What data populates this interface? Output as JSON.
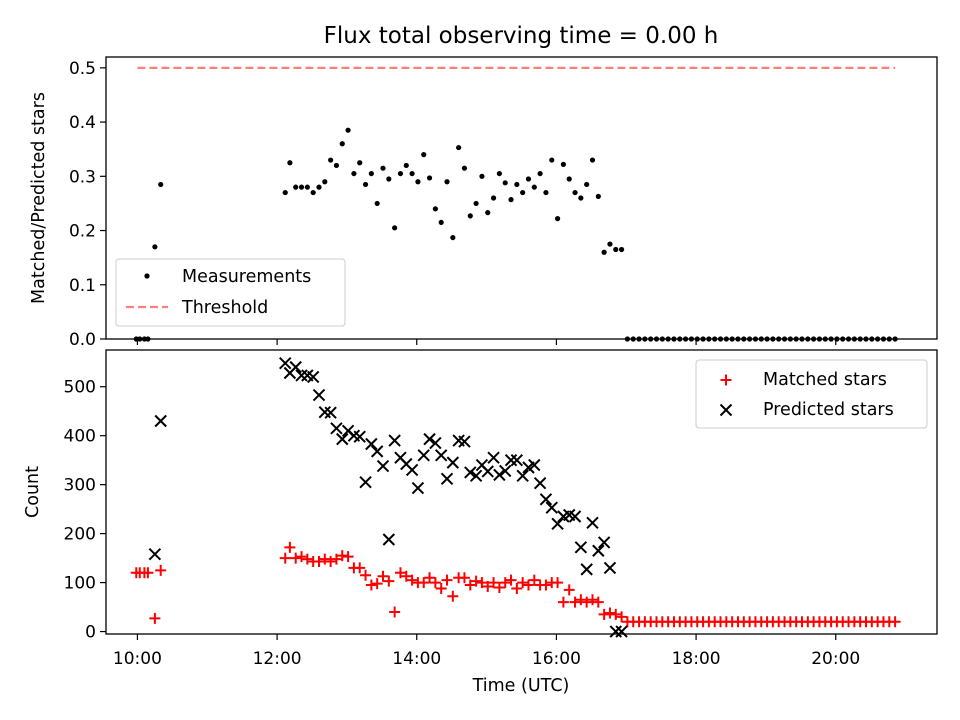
{
  "figure": {
    "title": "Flux total observing time = 0.00 h"
  },
  "chart_data": [
    {
      "type": "scatter",
      "title": "Flux total observing time = 0.00 h",
      "xlabel": "",
      "ylabel": "Matched/Predicted stars",
      "xlim": [
        "09:33",
        "21:27"
      ],
      "ylim": [
        0,
        0.52
      ],
      "yticks": [
        0,
        0.1,
        0.2,
        0.3,
        0.4,
        0.5
      ],
      "ytick_labels": [
        "0.0",
        "0.1",
        "0.2",
        "0.3",
        "0.4",
        "0.5"
      ],
      "legend_position": "lower-left",
      "series": [
        {
          "name": "Measurements",
          "kind": "points",
          "color": "#000000",
          "x": [
            "09:59",
            "10:02",
            "10:06",
            "10:09",
            "10:15",
            "10:20",
            "12:07",
            "12:11",
            "12:16",
            "12:21",
            "12:26",
            "12:31",
            "12:36",
            "12:41",
            "12:46",
            "12:51",
            "12:56",
            "13:01",
            "13:06",
            "13:11",
            "13:16",
            "13:21",
            "13:26",
            "13:31",
            "13:36",
            "13:41",
            "13:46",
            "13:51",
            "13:56",
            "14:01",
            "14:06",
            "14:11",
            "14:16",
            "14:21",
            "14:26",
            "14:31",
            "14:36",
            "14:41",
            "14:46",
            "14:51",
            "14:56",
            "15:01",
            "15:06",
            "15:11",
            "15:16",
            "15:21",
            "15:26",
            "15:31",
            "15:36",
            "15:41",
            "15:46",
            "15:51",
            "15:56",
            "16:01",
            "16:06",
            "16:11",
            "16:16",
            "16:21",
            "16:26",
            "16:31",
            "16:36",
            "16:41",
            "16:46",
            "16:51",
            "16:56",
            "17:01",
            "17:06",
            "17:11",
            "17:16",
            "17:21",
            "17:26",
            "17:31",
            "17:36",
            "17:41",
            "17:46",
            "17:51",
            "17:56",
            "18:01",
            "18:06",
            "18:11",
            "18:16",
            "18:21",
            "18:26",
            "18:31",
            "18:36",
            "18:41",
            "18:46",
            "18:51",
            "18:56",
            "19:01",
            "19:06",
            "19:11",
            "19:16",
            "19:21",
            "19:26",
            "19:31",
            "19:36",
            "19:41",
            "19:46",
            "19:51",
            "19:56",
            "20:01",
            "20:06",
            "20:11",
            "20:16",
            "20:21",
            "20:26",
            "20:31",
            "20:36",
            "20:41",
            "20:46",
            "20:51"
          ],
          "y": [
            0.0,
            0.0,
            0.0,
            0.0,
            0.17,
            0.285,
            0.27,
            0.325,
            0.28,
            0.28,
            0.28,
            0.27,
            0.28,
            0.29,
            0.33,
            0.32,
            0.36,
            0.385,
            0.305,
            0.325,
            0.285,
            0.305,
            0.25,
            0.315,
            0.295,
            0.205,
            0.305,
            0.32,
            0.305,
            0.29,
            0.34,
            0.297,
            0.24,
            0.215,
            0.29,
            0.187,
            0.353,
            0.315,
            0.227,
            0.25,
            0.3,
            0.233,
            0.26,
            0.305,
            0.288,
            0.257,
            0.285,
            0.27,
            0.295,
            0.28,
            0.305,
            0.27,
            0.33,
            0.222,
            0.322,
            0.295,
            0.27,
            0.26,
            0.285,
            0.33,
            0.263,
            0.16,
            0.175,
            0.165,
            0.165,
            0.0,
            0.0,
            0.0,
            0.0,
            0.0,
            0.0,
            0.0,
            0.0,
            0.0,
            0.0,
            0.0,
            0.0,
            0.0,
            0.0,
            0.0,
            0.0,
            0.0,
            0.0,
            0.0,
            0.0,
            0.0,
            0.0,
            0.0,
            0.0,
            0.0,
            0.0,
            0.0,
            0.0,
            0.0,
            0.0,
            0.0,
            0.0,
            0.0,
            0.0,
            0.0,
            0.0,
            0.0,
            0.0,
            0.0,
            0.0,
            0.0,
            0.0,
            0.0,
            0.0,
            0.0,
            0.0,
            0.0
          ]
        },
        {
          "name": "Threshold",
          "kind": "dashed-line",
          "color": "#ff7f7f",
          "x": [
            "10:00",
            "20:51"
          ],
          "y": [
            0.5,
            0.5
          ]
        }
      ]
    },
    {
      "type": "scatter",
      "xlabel": "Time (UTC)",
      "ylabel": "Count",
      "xlim": [
        "09:33",
        "21:27"
      ],
      "ylim": [
        -5,
        575
      ],
      "xtick_labels": [
        "10:00",
        "12:00",
        "14:00",
        "16:00",
        "18:00",
        "20:00"
      ],
      "yticks": [
        0,
        100,
        200,
        300,
        400,
        500
      ],
      "ytick_labels": [
        "0",
        "100",
        "200",
        "300",
        "400",
        "500"
      ],
      "legend_position": "upper-right",
      "series": [
        {
          "name": "Matched stars",
          "kind": "plus",
          "color": "#ff0000",
          "x": [
            "09:59",
            "10:02",
            "10:06",
            "10:09",
            "10:15",
            "10:20",
            "12:07",
            "12:11",
            "12:16",
            "12:21",
            "12:26",
            "12:31",
            "12:36",
            "12:41",
            "12:46",
            "12:51",
            "12:56",
            "13:01",
            "13:06",
            "13:11",
            "13:16",
            "13:21",
            "13:26",
            "13:31",
            "13:36",
            "13:41",
            "13:46",
            "13:51",
            "13:56",
            "14:01",
            "14:06",
            "14:11",
            "14:16",
            "14:21",
            "14:26",
            "14:31",
            "14:36",
            "14:41",
            "14:46",
            "14:51",
            "14:56",
            "15:01",
            "15:06",
            "15:11",
            "15:16",
            "15:21",
            "15:26",
            "15:31",
            "15:36",
            "15:41",
            "15:46",
            "15:51",
            "15:56",
            "16:01",
            "16:06",
            "16:11",
            "16:16",
            "16:21",
            "16:26",
            "16:31",
            "16:36",
            "16:41",
            "16:46",
            "16:51",
            "16:56",
            "17:01",
            "17:06",
            "17:11",
            "17:16",
            "17:21",
            "17:26",
            "17:31",
            "17:36",
            "17:41",
            "17:46",
            "17:51",
            "17:56",
            "18:01",
            "18:06",
            "18:11",
            "18:16",
            "18:21",
            "18:26",
            "18:31",
            "18:36",
            "18:41",
            "18:46",
            "18:51",
            "18:56",
            "19:01",
            "19:06",
            "19:11",
            "19:16",
            "19:21",
            "19:26",
            "19:31",
            "19:36",
            "19:41",
            "19:46",
            "19:51",
            "19:56",
            "20:01",
            "20:06",
            "20:11",
            "20:16",
            "20:21",
            "20:26",
            "20:31",
            "20:36",
            "20:41",
            "20:46",
            "20:51"
          ],
          "y": [
            120,
            120,
            120,
            120,
            27,
            125,
            150,
            172,
            150,
            153,
            148,
            143,
            143,
            148,
            143,
            148,
            155,
            153,
            130,
            130,
            115,
            95,
            98,
            113,
            103,
            40,
            120,
            113,
            105,
            100,
            100,
            110,
            100,
            88,
            105,
            72,
            110,
            110,
            95,
            103,
            100,
            92,
            100,
            90,
            100,
            105,
            88,
            100,
            95,
            105,
            95,
            95,
            100,
            100,
            60,
            85,
            60,
            65,
            60,
            65,
            60,
            35,
            38,
            35,
            30,
            20,
            20,
            20,
            20,
            20,
            20,
            20,
            20,
            20,
            20,
            20,
            20,
            20,
            20,
            20,
            20,
            20,
            20,
            20,
            20,
            20,
            20,
            20,
            20,
            20,
            20,
            20,
            20,
            20,
            20,
            20,
            20,
            20,
            20,
            20,
            20,
            20,
            20,
            20,
            20,
            20,
            20,
            20,
            20,
            20,
            20,
            20
          ]
        },
        {
          "name": "Predicted stars",
          "kind": "x",
          "color": "#000000",
          "x": [
            "10:15",
            "10:20",
            "12:07",
            "12:11",
            "12:16",
            "12:21",
            "12:26",
            "12:31",
            "12:36",
            "12:41",
            "12:46",
            "12:51",
            "12:56",
            "13:01",
            "13:06",
            "13:11",
            "13:16",
            "13:21",
            "13:26",
            "13:31",
            "13:36",
            "13:41",
            "13:46",
            "13:51",
            "13:56",
            "14:01",
            "14:06",
            "14:11",
            "14:16",
            "14:21",
            "14:26",
            "14:31",
            "14:36",
            "14:41",
            "14:46",
            "14:51",
            "14:56",
            "15:01",
            "15:06",
            "15:11",
            "15:16",
            "15:21",
            "15:26",
            "15:31",
            "15:36",
            "15:41",
            "15:46",
            "15:51",
            "15:56",
            "16:01",
            "16:06",
            "16:11",
            "16:16",
            "16:21",
            "16:26",
            "16:31",
            "16:36",
            "16:41",
            "16:46",
            "16:51",
            "16:56"
          ],
          "y": [
            158,
            430,
            548,
            528,
            540,
            523,
            523,
            520,
            483,
            448,
            447,
            415,
            393,
            410,
            400,
            398,
            305,
            383,
            368,
            338,
            188,
            390,
            355,
            342,
            330,
            293,
            360,
            393,
            385,
            360,
            312,
            345,
            390,
            388,
            325,
            318,
            340,
            327,
            355,
            320,
            328,
            350,
            350,
            318,
            335,
            340,
            303,
            270,
            253,
            220,
            235,
            238,
            235,
            172,
            127,
            222,
            165,
            182,
            130,
            0,
            0
          ]
        }
      ]
    }
  ]
}
